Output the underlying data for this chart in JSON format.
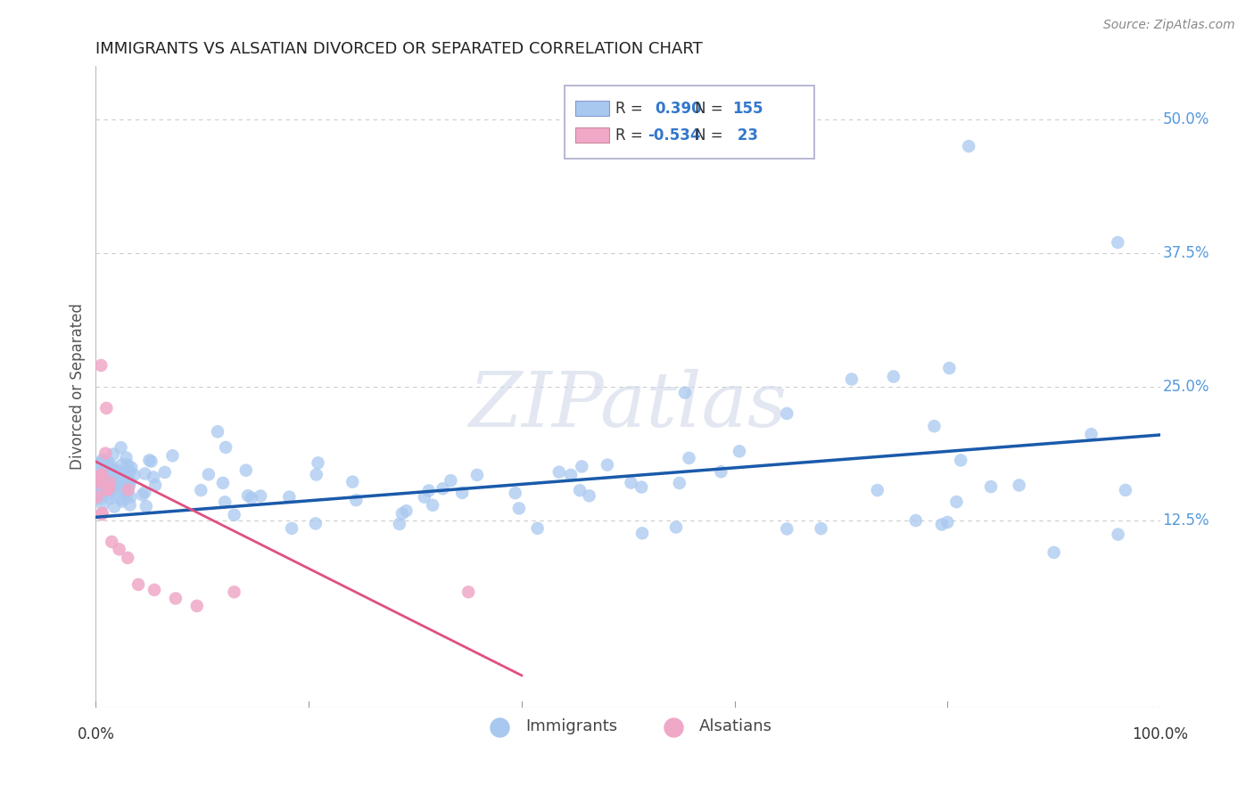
{
  "title": "IMMIGRANTS VS ALSATIAN DIVORCED OR SEPARATED CORRELATION CHART",
  "source": "Source: ZipAtlas.com",
  "ylabel": "Divorced or Separated",
  "xlim": [
    0.0,
    1.0
  ],
  "ylim": [
    -0.05,
    0.55
  ],
  "blue_R": 0.39,
  "blue_N": 155,
  "pink_R": -0.534,
  "pink_N": 23,
  "blue_color": "#a8c8f0",
  "pink_color": "#f0a8c8",
  "blue_line_color": "#1a5aaa",
  "pink_line_color": "#e05080",
  "legend_blue_label": "Immigrants",
  "legend_pink_label": "Alsatians",
  "watermark": "ZIPatlas",
  "background_color": "#ffffff",
  "grid_color": "#cccccc",
  "ytick_values": [
    0.125,
    0.25,
    0.375,
    0.5
  ],
  "ytick_labels": [
    "12.5%",
    "25.0%",
    "37.5%",
    "50.0%"
  ],
  "xtick_values": [
    0.0,
    1.0
  ],
  "xtick_labels": [
    "0.0%",
    "100.0%"
  ],
  "blue_line_x0": 0.0,
  "blue_line_y0": 0.128,
  "blue_line_x1": 1.0,
  "blue_line_y1": 0.205,
  "pink_line_x0": 0.0,
  "pink_line_y0": 0.18,
  "pink_line_x1": 0.4,
  "pink_line_y1": -0.02
}
